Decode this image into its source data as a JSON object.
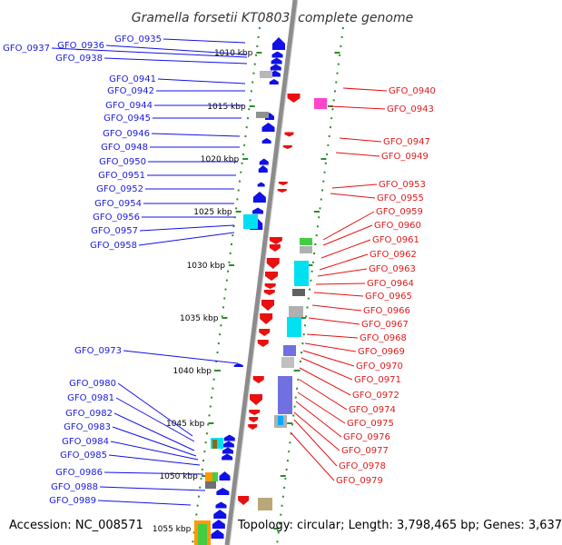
{
  "title": "Gramella forsetii KT0803, complete genome",
  "footer": {
    "accession": "Accession: NC_008571",
    "topology": "Topology: circular; Length: 3,798,465 bp; Genes: 3,637"
  },
  "colors": {
    "backbone": "#8c8c8c",
    "forward_gene": "#1010e8",
    "reverse_gene": "#e81010",
    "left_label": "#1a1ae0",
    "right_label": "#e01a1a",
    "dots": "#2e8b2e"
  },
  "scale_ticks": [
    "1010 kbp",
    "1015 kbp",
    "1020 kbp",
    "1025 kbp",
    "1030 kbp",
    "1035 kbp",
    "1040 kbp",
    "1045 kbp",
    "1050 kbp",
    "1055 kbp"
  ],
  "left_labels": [
    "GFO_0935",
    "GFO_0936",
    "GFO_0937",
    "GFO_0938",
    "GFO_0941",
    "GFO_0942",
    "GFO_0944",
    "GFO_0945",
    "GFO_0946",
    "GFO_0948",
    "GFO_0950",
    "GFO_0951",
    "GFO_0952",
    "GFO_0954",
    "GFO_0956",
    "GFO_0957",
    "GFO_0958",
    "GFO_0973",
    "GFO_0980",
    "GFO_0981",
    "GFO_0982",
    "GFO_0983",
    "GFO_0984",
    "GFO_0985",
    "GFO_0986",
    "GFO_0988",
    "GFO_0989"
  ],
  "right_labels": [
    "GFO_0940",
    "GFO_0943",
    "GFO_0947",
    "GFO_0949",
    "GFO_0953",
    "GFO_0955",
    "GFO_0959",
    "GFO_0960",
    "GFO_0961",
    "GFO_0962",
    "GFO_0963",
    "GFO_0964",
    "GFO_0965",
    "GFO_0966",
    "GFO_0967",
    "GFO_0968",
    "GFO_0969",
    "GFO_0970",
    "GFO_0971",
    "GFO_0972",
    "GFO_0974",
    "GFO_0975",
    "GFO_0976",
    "GFO_0977",
    "GFO_0978",
    "GFO_0979"
  ]
}
